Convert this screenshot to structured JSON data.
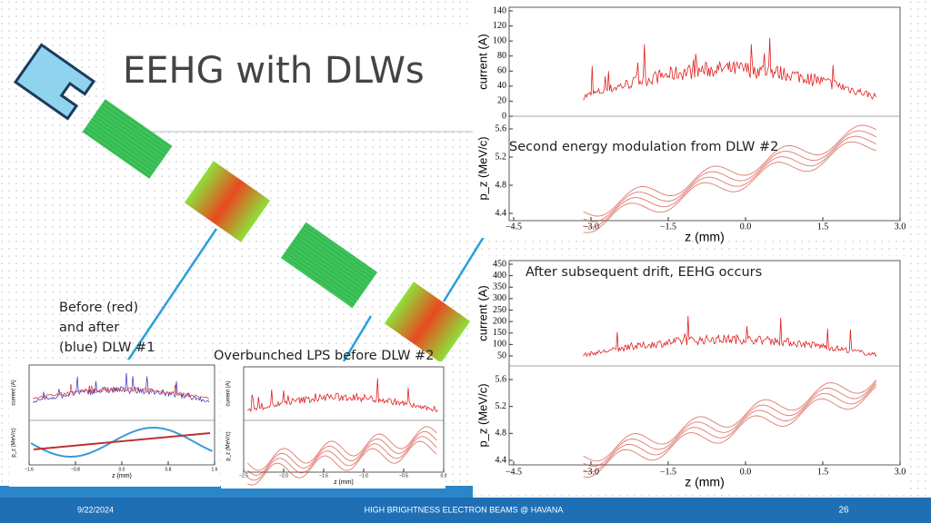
{
  "title": "EEHG with DLWs",
  "labels": {
    "second_modulation": "Second energy modulation from DLW #2",
    "eehg_occurs": "After subsequent drift, EEHG occurs",
    "before_after": [
      "Before (red)",
      "and after",
      "(blue) DLW #1"
    ],
    "overbunched": "Overbunched LPS before DLW #2"
  },
  "plots": [
    {
      "current_label": "current (A)",
      "pz_label": "p_z (MeV/c)",
      "z_label": "z (mm)",
      "current_ticks": [
        "0",
        "20",
        "40",
        "60",
        "80",
        "100",
        "120",
        "140"
      ],
      "pz_ticks": [
        "4.4",
        "4.8",
        "5.2",
        "5.6"
      ],
      "z_ticks": [
        "−4.5",
        "−3.0",
        "−1.5",
        "0.0",
        "1.5",
        "3.0"
      ]
    },
    {
      "current_label": "current (A)",
      "pz_label": "p_z (MeV/c)",
      "z_label": "z (mm)",
      "current_ticks": [
        "50",
        "100",
        "150",
        "200",
        "250",
        "300",
        "350",
        "400",
        "450"
      ],
      "pz_ticks": [
        "4.4",
        "4.8",
        "5.2",
        "5.6"
      ],
      "z_ticks": [
        "−4.5",
        "−3.0",
        "−1.5",
        "0.0",
        "1.5",
        "3.0"
      ]
    },
    {
      "current_label": "current (A)",
      "pz_label": "p_z (MeV/c)",
      "z_label": "z (mm)",
      "z_ticks": [
        "−1.6",
        "−0.8",
        "0.0",
        "0.8",
        "1.6"
      ]
    },
    {
      "current_label": "current (A)",
      "pz_label": "p_z (MeV/c)",
      "z_label": "z (mm)",
      "z_ticks": [
        "−2.5",
        "−2.0",
        "−1.5",
        "−1.0",
        "−0.5",
        "0.0"
      ]
    }
  ],
  "footer": {
    "date": "9/22/2024",
    "center": "HIGH BRIGHTNESS ELECTRON BEAMS @ HAVANA",
    "page": "26"
  }
}
